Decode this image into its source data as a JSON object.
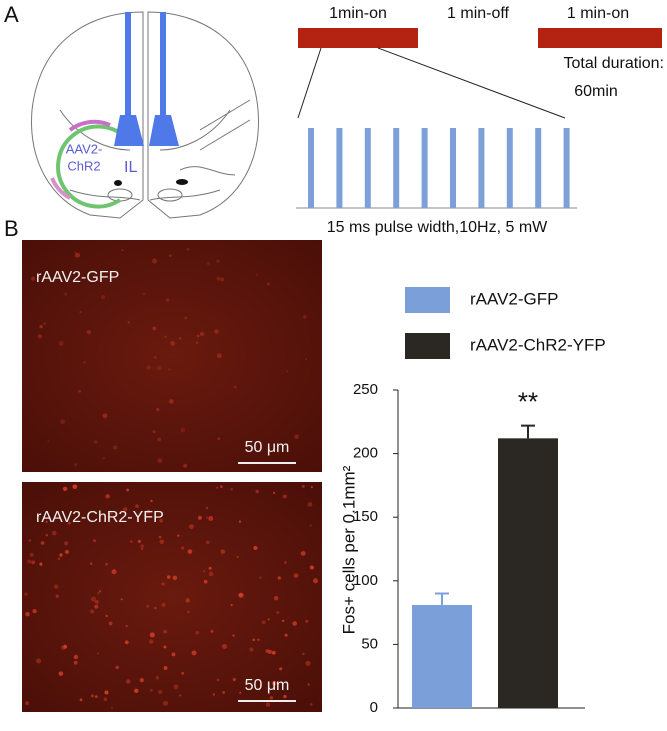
{
  "panel_labels": [
    "A",
    "B"
  ],
  "panel_a": {
    "brain": {
      "virus_label_1": "AAV2-",
      "virus_label_2": "ChR2",
      "region": "IL"
    },
    "protocol": {
      "on_1": "1min-on",
      "off": "1 min-off",
      "on_2": "1 min-on",
      "total_1": "Total duration:",
      "total_2": "60min",
      "pulse_caption": "15 ms pulse width,10Hz, 5 mW"
    }
  },
  "panel_b": {
    "images": [
      {
        "label": "rAAV2-GFP",
        "scale_bar": "50 μm"
      },
      {
        "label": "rAAV2-ChR2-YFP",
        "scale_bar": "50 μm"
      }
    ]
  },
  "chart_data": {
    "type": "bar",
    "y_label": "Fos+ cells per 0.1mm²",
    "annotation": "**",
    "categories": [
      null
    ],
    "series": [
      {
        "name": "rAAV2-GFP",
        "color": "#7b9fd9",
        "values": [
          81
        ],
        "errors": [
          9
        ]
      },
      {
        "name": "rAAV2-ChR2-YFP",
        "color": "#2b2722",
        "values": [
          212
        ],
        "errors": [
          10
        ]
      }
    ],
    "ylim": [
      0,
      250
    ],
    "yticks": [
      0,
      50,
      100,
      150,
      200,
      250
    ],
    "legend": "top"
  }
}
